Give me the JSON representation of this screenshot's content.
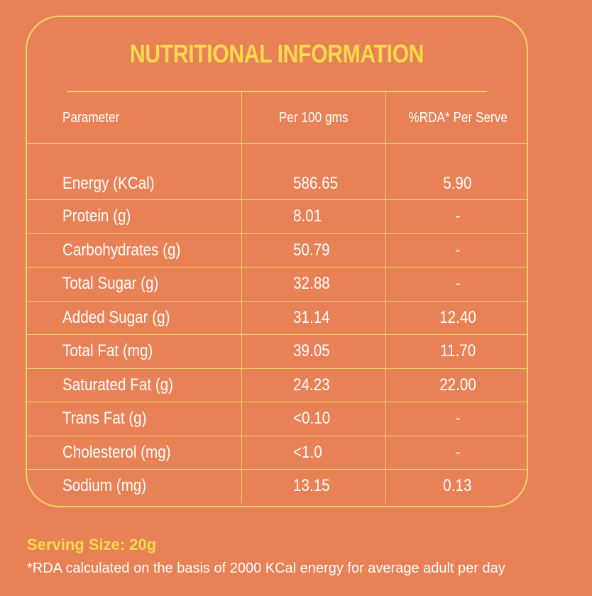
{
  "title": "NUTRITIONAL INFORMATION",
  "table": {
    "headers": [
      "Parameter",
      "Per 100 gms",
      "%RDA* Per Serve"
    ],
    "rows": [
      {
        "parameter": "Energy (KCal)",
        "per100": "586.65",
        "rda": "5.90"
      },
      {
        "parameter": "Protein (g)",
        "per100": "8.01",
        "rda": "-"
      },
      {
        "parameter": "Carbohydrates (g)",
        "per100": "50.79",
        "rda": "-"
      },
      {
        "parameter": "Total Sugar (g)",
        "per100": "32.88",
        "rda": "-"
      },
      {
        "parameter": "Added Sugar (g)",
        "per100": "31.14",
        "rda": "12.40"
      },
      {
        "parameter": "Total Fat (mg)",
        "per100": "39.05",
        "rda": "11.70"
      },
      {
        "parameter": "Saturated Fat (g)",
        "per100": "24.23",
        "rda": "22.00"
      },
      {
        "parameter": "Trans Fat (g)",
        "per100": "<0.10",
        "rda": "-"
      },
      {
        "parameter": "Cholesterol (mg)",
        "per100": "<1.0",
        "rda": "-"
      },
      {
        "parameter": "Sodium (mg)",
        "per100": "13.15",
        "rda": "0.13"
      }
    ]
  },
  "serving_size": "Serving Size: 20g",
  "footnote": "*RDA calculated on the basis of 2000 KCal energy for average adult per day",
  "colors": {
    "background": "#E98156",
    "accent": "#F9D94E",
    "border": "#F2D463",
    "text": "#FFFFFF"
  }
}
